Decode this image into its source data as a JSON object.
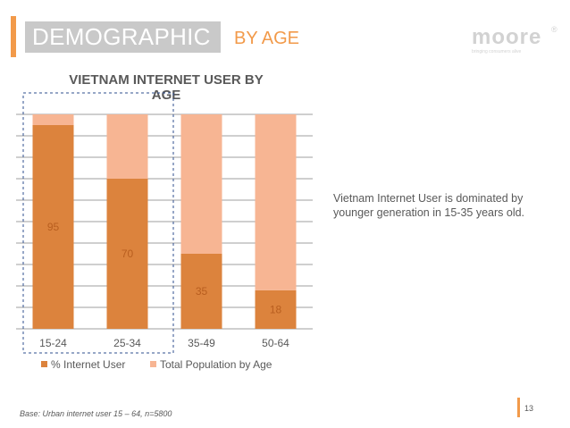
{
  "header": {
    "title": "DEMOGRAPHIC",
    "subtitle": "BY AGE"
  },
  "logo": {
    "text": "moore",
    "registered": "®",
    "tagline": "bringing consumers alive"
  },
  "colors": {
    "accent": "#f29a4a",
    "internet_user": "#dc833d",
    "total_population": "#f7b593",
    "header_bg": "#c9c9c9"
  },
  "chart_data": {
    "type": "bar",
    "stacked": true,
    "title": "VIETNAM INTERNET USER BY AGE",
    "title_lines": [
      "VIETNAM INTERNET USER BY",
      "AGE"
    ],
    "categories": [
      "15-24",
      "25-34",
      "35-49",
      "50-64"
    ],
    "series": [
      {
        "name": "% Internet User",
        "values": [
          95,
          70,
          35,
          18
        ],
        "show_labels": true
      },
      {
        "name": "Total Population by Age",
        "values": [
          5,
          30,
          65,
          82
        ],
        "show_labels": false
      }
    ],
    "ylim": [
      0,
      100
    ],
    "gridlines": [
      0,
      10,
      20,
      30,
      40,
      50,
      60,
      70,
      80,
      90,
      100
    ],
    "legend": "bottom",
    "highlight": [
      "15-24",
      "25-34"
    ]
  },
  "side_note": "Vietnam Internet User is dominated by younger generation in 15-35 years old.",
  "footnote": "Base: Urban internet user 15 – 64, n=5800",
  "page_number": "13"
}
